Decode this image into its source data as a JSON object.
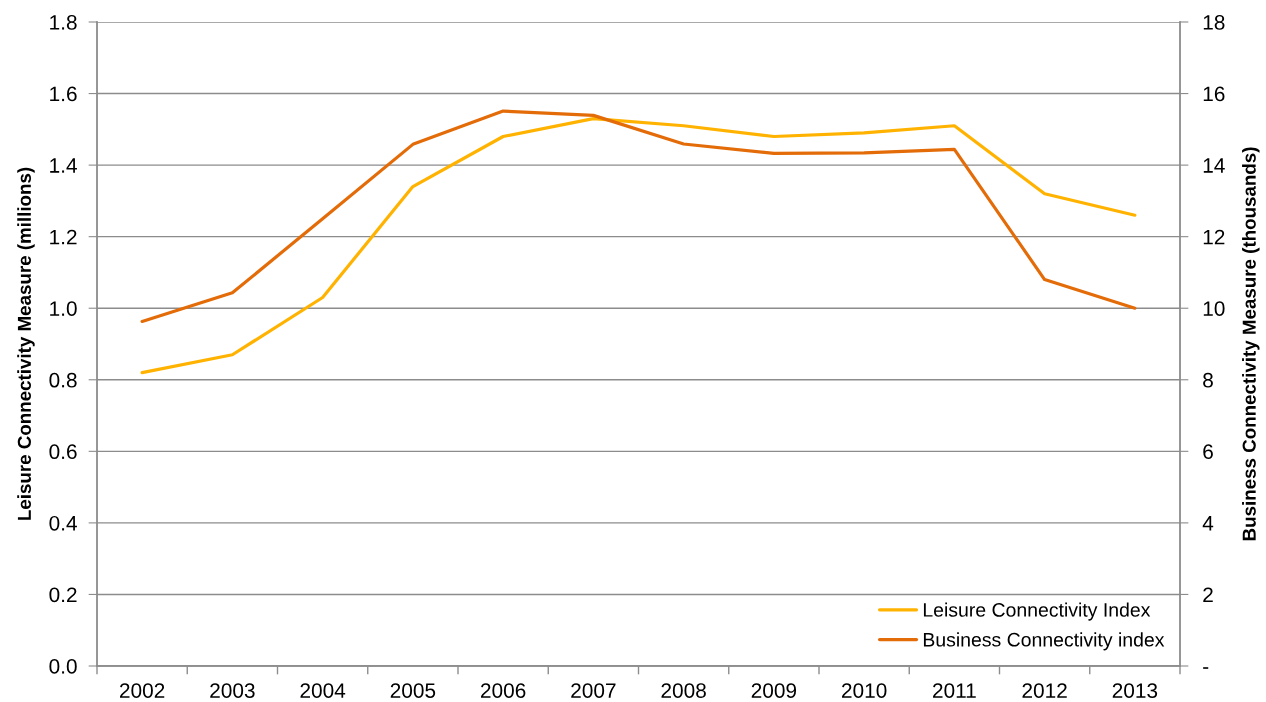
{
  "chart_data": {
    "type": "line",
    "categories": [
      "2002",
      "2003",
      "2004",
      "2005",
      "2006",
      "2007",
      "2008",
      "2009",
      "2010",
      "2011",
      "2012",
      "2013"
    ],
    "ylabel": "Leisure Connectivity Measure (millions)",
    "y2label": "Business Connectivity Measure (thousands)",
    "ylim": [
      0,
      1.8
    ],
    "yticks": [
      {
        "value": 0,
        "label": "0.0"
      },
      0.2,
      0.4,
      0.6,
      0.8,
      {
        "value": 1,
        "label": "1.0"
      },
      1.2,
      1.4,
      1.6,
      1.8
    ],
    "y2lim": [
      0,
      18
    ],
    "y2ticks": [
      {
        "value": 0,
        "label": "-"
      },
      2,
      4,
      6,
      8,
      10,
      12,
      14,
      16,
      18
    ],
    "series": [
      {
        "name": "Leisure Connectivity Index",
        "color": "#ffb300",
        "values": [
          0.82,
          0.87,
          1.03,
          1.34,
          1.48,
          1.53,
          1.51,
          1.48,
          1.49,
          1.51,
          1.32,
          1.26
        ]
      },
      {
        "name": "Business Connectivity index",
        "color": "#e36c09",
        "axis": "y2",
        "values": [
          9.63,
          10.43,
          12.5,
          14.58,
          15.51,
          15.39,
          14.59,
          14.33,
          14.34,
          14.44,
          10.8,
          10.0
        ]
      }
    ],
    "grid": "y",
    "legend": "bottom right",
    "marker": "none",
    "line_style": "solid"
  }
}
